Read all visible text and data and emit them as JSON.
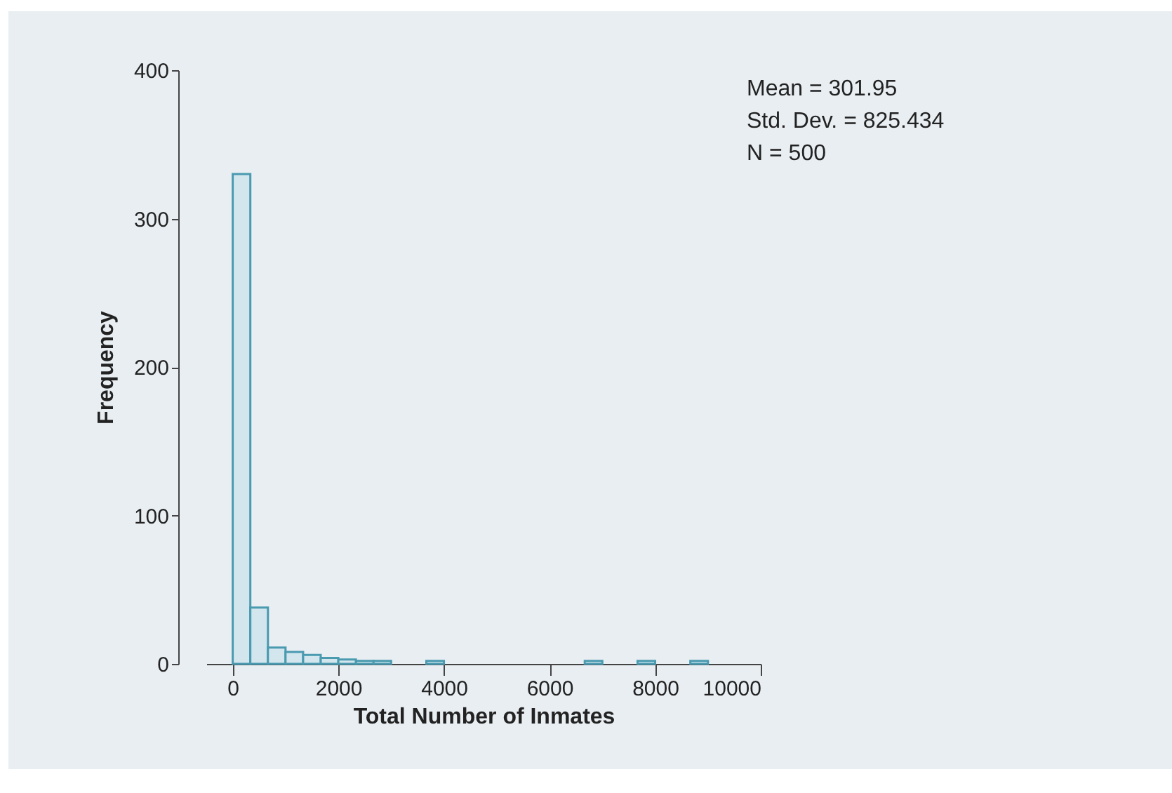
{
  "chart_data": {
    "type": "histogram",
    "xlabel": "Total Number of Inmates",
    "ylabel": "Frequency",
    "bins": [
      0,
      333.33,
      666.67,
      1000,
      1333.33,
      1666.67,
      2000,
      2333.33,
      2666.67,
      3000,
      3333.33,
      3666.67,
      4000,
      4333.33,
      4666.67,
      5000,
      5333.33,
      5666.67,
      6000,
      6333.33,
      6666.67,
      7000,
      7333.33,
      7666.67,
      8000,
      8333.33,
      8666.67,
      9000
    ],
    "values": [
      330,
      38,
      11,
      8,
      6,
      4,
      3,
      2,
      2,
      0,
      0,
      2,
      0,
      0,
      0,
      0,
      0,
      0,
      0,
      0,
      2,
      0,
      0,
      2,
      0,
      0,
      2
    ],
    "color": "#d3e6ee",
    "xlim": [
      -500,
      10000
    ],
    "xticks": [
      0,
      2000,
      4000,
      6000,
      8000,
      10000
    ],
    "ylim": [
      0,
      400
    ],
    "yticks": [
      0,
      100,
      200,
      300,
      400
    ],
    "annotations": [
      "Mean = 301.95",
      "Std. Dev. = 825.434",
      "N = 500"
    ],
    "grid": false
  }
}
